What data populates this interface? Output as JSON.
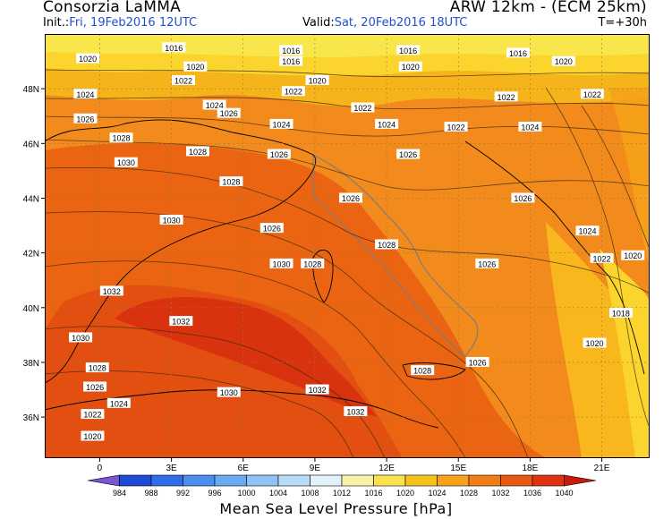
{
  "header": {
    "org": "Consorzia LaMMA",
    "model": "ARW 12km  -  (ECM 25km)",
    "init_prefix": "Init.:",
    "init_value": "Fri, 19Feb2016 12UTC",
    "valid_prefix": "Valid:",
    "valid_value": "Sat, 20Feb2016 18UTC",
    "step": "T=+30h"
  },
  "map": {
    "lon_ticks": [
      "0",
      "3E",
      "6E",
      "9E",
      "12E",
      "15E",
      "18E",
      "21E"
    ],
    "lat_ticks": [
      "48N",
      "46N",
      "44N",
      "42N",
      "40N",
      "38N",
      "36N"
    ],
    "isobar_labels": [
      {
        "text": "1016",
        "lon": 3.1,
        "lat": 49.5
      },
      {
        "text": "1016",
        "lon": 8.0,
        "lat": 49.4
      },
      {
        "text": "1016",
        "lon": 8.0,
        "lat": 49.0
      },
      {
        "text": "1016",
        "lon": 12.9,
        "lat": 49.4
      },
      {
        "text": "1016",
        "lon": 17.5,
        "lat": 49.3
      },
      {
        "text": "1020",
        "lon": -0.5,
        "lat": 49.1
      },
      {
        "text": "1020",
        "lon": 4.0,
        "lat": 48.8
      },
      {
        "text": "1020",
        "lon": 9.1,
        "lat": 48.3
      },
      {
        "text": "1020",
        "lon": 13.0,
        "lat": 48.8
      },
      {
        "text": "1020",
        "lon": 19.4,
        "lat": 49.0
      },
      {
        "text": "1022",
        "lon": 3.5,
        "lat": 48.3
      },
      {
        "text": "1022",
        "lon": 8.1,
        "lat": 47.9
      },
      {
        "text": "1022",
        "lon": 11.0,
        "lat": 47.3
      },
      {
        "text": "1022",
        "lon": 17.0,
        "lat": 47.7
      },
      {
        "text": "1022",
        "lon": 20.6,
        "lat": 47.8
      },
      {
        "text": "1024",
        "lon": -0.6,
        "lat": 47.8
      },
      {
        "text": "1024",
        "lon": 4.8,
        "lat": 47.4
      },
      {
        "text": "1024",
        "lon": 7.6,
        "lat": 46.7
      },
      {
        "text": "1024",
        "lon": 12.0,
        "lat": 46.7
      },
      {
        "text": "1022",
        "lon": 14.9,
        "lat": 46.6
      },
      {
        "text": "1024",
        "lon": 18.0,
        "lat": 46.6
      },
      {
        "text": "1026",
        "lon": -0.6,
        "lat": 46.9
      },
      {
        "text": "1026",
        "lon": 5.4,
        "lat": 47.1
      },
      {
        "text": "1028",
        "lon": 0.9,
        "lat": 46.2
      },
      {
        "text": "1028",
        "lon": 4.1,
        "lat": 45.7
      },
      {
        "text": "1026",
        "lon": 7.5,
        "lat": 45.6
      },
      {
        "text": "1026",
        "lon": 12.9,
        "lat": 45.6
      },
      {
        "text": "1030",
        "lon": 1.1,
        "lat": 45.3
      },
      {
        "text": "1028",
        "lon": 5.5,
        "lat": 44.6
      },
      {
        "text": "1026",
        "lon": 10.5,
        "lat": 44.0
      },
      {
        "text": "1026",
        "lon": 17.7,
        "lat": 44.0
      },
      {
        "text": "1030",
        "lon": 3.0,
        "lat": 43.2
      },
      {
        "text": "1026",
        "lon": 7.2,
        "lat": 42.9
      },
      {
        "text": "1024",
        "lon": 20.4,
        "lat": 42.8
      },
      {
        "text": "1028",
        "lon": 12.0,
        "lat": 42.3
      },
      {
        "text": "1022",
        "lon": 21.0,
        "lat": 41.8
      },
      {
        "text": "1020",
        "lon": 22.3,
        "lat": 41.9
      },
      {
        "text": "1030",
        "lon": 7.6,
        "lat": 41.6
      },
      {
        "text": "1028",
        "lon": 8.9,
        "lat": 41.6
      },
      {
        "text": "1026",
        "lon": 16.2,
        "lat": 41.6
      },
      {
        "text": "1032",
        "lon": 0.5,
        "lat": 40.6
      },
      {
        "text": "1032",
        "lon": 3.4,
        "lat": 39.5
      },
      {
        "text": "1018",
        "lon": 21.8,
        "lat": 39.8
      },
      {
        "text": "1030",
        "lon": -0.8,
        "lat": 38.9
      },
      {
        "text": "1020",
        "lon": 20.7,
        "lat": 38.7
      },
      {
        "text": "1028",
        "lon": -0.1,
        "lat": 37.8
      },
      {
        "text": "1028",
        "lon": 13.5,
        "lat": 37.7
      },
      {
        "text": "1026",
        "lon": 15.8,
        "lat": 38.0
      },
      {
        "text": "1026",
        "lon": -0.2,
        "lat": 37.1
      },
      {
        "text": "1032",
        "lon": 9.1,
        "lat": 37.0
      },
      {
        "text": "1030",
        "lon": 5.4,
        "lat": 36.9
      },
      {
        "text": "1024",
        "lon": 0.8,
        "lat": 36.5
      },
      {
        "text": "1022",
        "lon": -0.3,
        "lat": 36.1
      },
      {
        "text": "1032",
        "lon": 10.7,
        "lat": 36.2
      },
      {
        "text": "1020",
        "lon": -0.3,
        "lat": 35.3
      }
    ]
  },
  "colorbar": {
    "levels": [
      "984",
      "988",
      "992",
      "996",
      "1000",
      "1004",
      "1008",
      "1012",
      "1016",
      "1020",
      "1024",
      "1028",
      "1032",
      "1036",
      "1040"
    ],
    "colors": [
      "#7a55d6",
      "#1d4bd8",
      "#2f6de8",
      "#4a8ff0",
      "#6aaaf2",
      "#8fc3f5",
      "#b6dcf8",
      "#e2f2fb",
      "#f7f2a4",
      "#fbe24d",
      "#f8c21e",
      "#f6a21a",
      "#f07d16",
      "#e85a13",
      "#de3310",
      "#c81b0b"
    ],
    "title": "Mean Sea Level Pressure [hPa]"
  }
}
